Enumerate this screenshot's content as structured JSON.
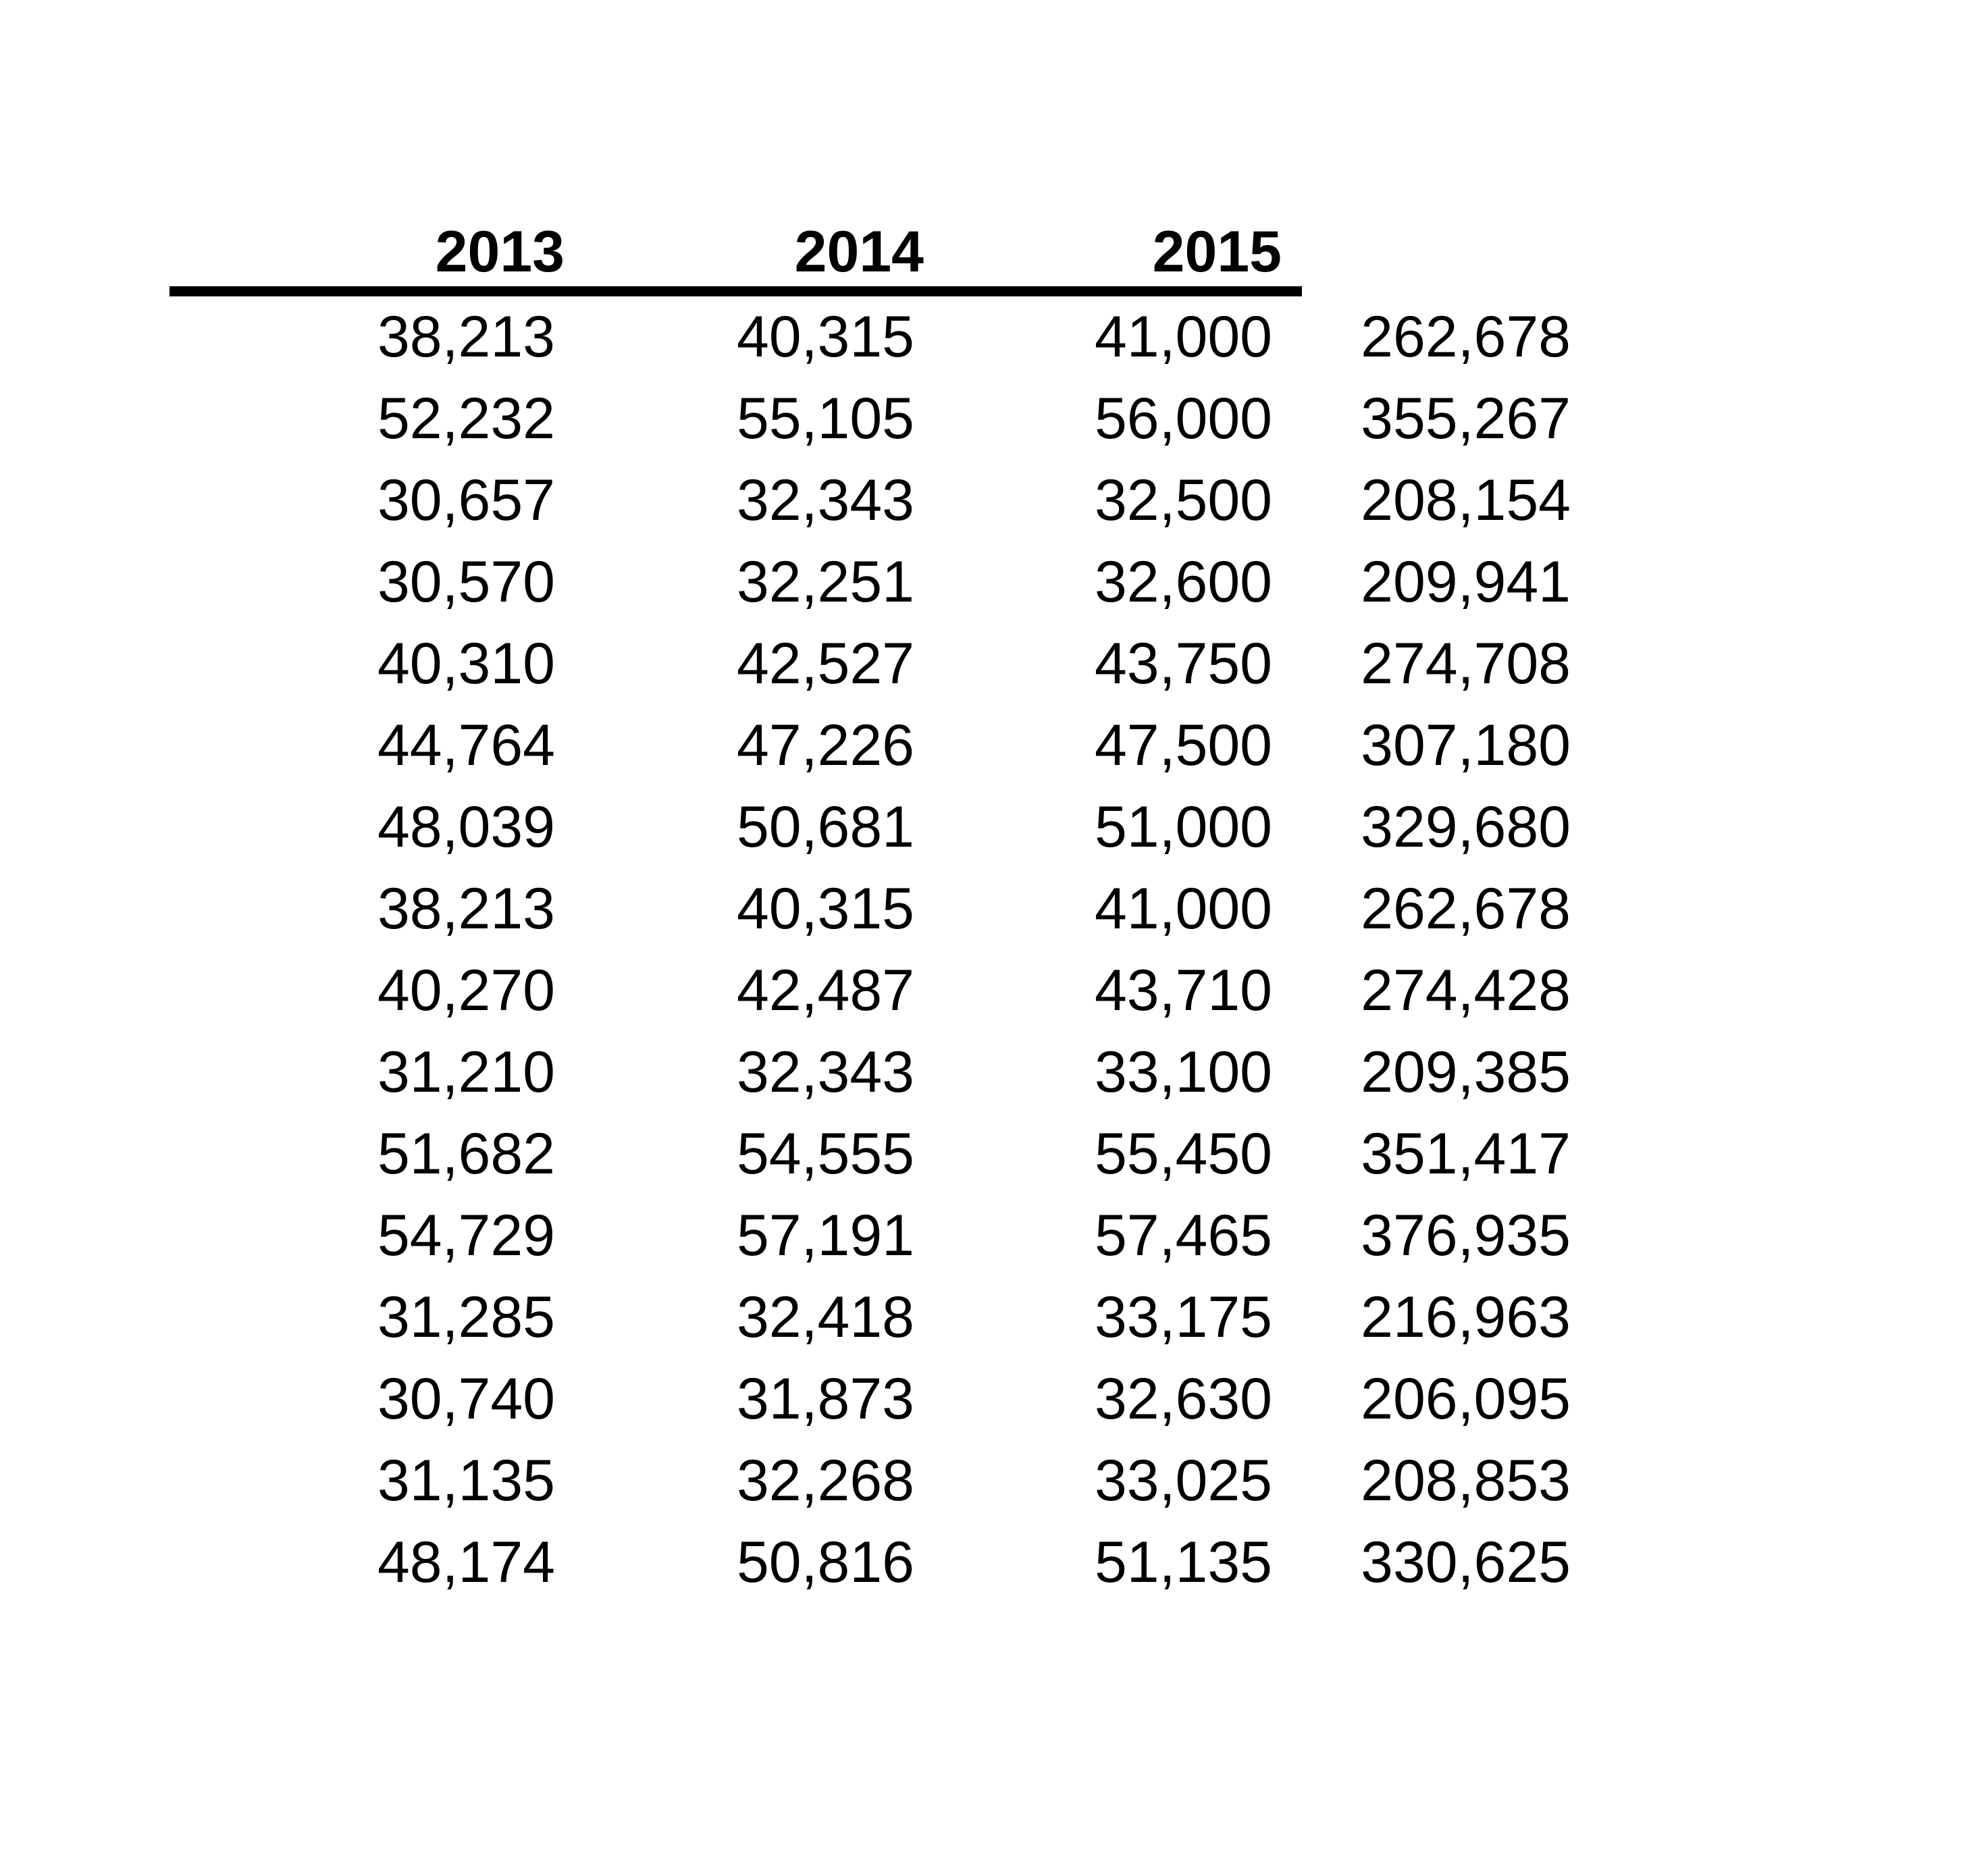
{
  "colors": {
    "background": "#ffffff",
    "text": "#000000",
    "rule": "#000000"
  },
  "table": {
    "headers": [
      "2013",
      "2014",
      "2015",
      ""
    ],
    "rows": [
      [
        "38,213",
        "40,315",
        "41,000",
        "262,678"
      ],
      [
        "52,232",
        "55,105",
        "56,000",
        "355,267"
      ],
      [
        "30,657",
        "32,343",
        "32,500",
        "208,154"
      ],
      [
        "30,570",
        "32,251",
        "32,600",
        "209,941"
      ],
      [
        "40,310",
        "42,527",
        "43,750",
        "274,708"
      ],
      [
        "44,764",
        "47,226",
        "47,500",
        "307,180"
      ],
      [
        "48,039",
        "50,681",
        "51,000",
        "329,680"
      ],
      [
        "38,213",
        "40,315",
        "41,000",
        "262,678"
      ],
      [
        "40,270",
        "42,487",
        "43,710",
        "274,428"
      ],
      [
        "31,210",
        "32,343",
        "33,100",
        "209,385"
      ],
      [
        "51,682",
        "54,555",
        "55,450",
        "351,417"
      ],
      [
        "54,729",
        "57,191",
        "57,465",
        "376,935"
      ],
      [
        "31,285",
        "32,418",
        "33,175",
        "216,963"
      ],
      [
        "30,740",
        "31,873",
        "32,630",
        "206,095"
      ],
      [
        "31,135",
        "32,268",
        "33,025",
        "208,853"
      ],
      [
        "48,174",
        "50,816",
        "51,135",
        "330,625"
      ]
    ]
  },
  "chart_data": {
    "type": "table",
    "title": "",
    "columns": [
      "2013",
      "2014",
      "2015",
      ""
    ],
    "rows": [
      [
        38213,
        40315,
        41000,
        262678
      ],
      [
        52232,
        55105,
        56000,
        355267
      ],
      [
        30657,
        32343,
        32500,
        208154
      ],
      [
        30570,
        32251,
        32600,
        209941
      ],
      [
        40310,
        42527,
        43750,
        274708
      ],
      [
        44764,
        47226,
        47500,
        307180
      ],
      [
        48039,
        50681,
        51000,
        329680
      ],
      [
        38213,
        40315,
        41000,
        262678
      ],
      [
        40270,
        42487,
        43710,
        274428
      ],
      [
        31210,
        32343,
        33100,
        209385
      ],
      [
        51682,
        54555,
        55450,
        351417
      ],
      [
        54729,
        57191,
        57465,
        376935
      ],
      [
        31285,
        32418,
        33175,
        216963
      ],
      [
        30740,
        31873,
        32630,
        206095
      ],
      [
        31135,
        32268,
        33025,
        208853
      ],
      [
        48174,
        50816,
        51135,
        330625
      ]
    ],
    "layout_hints": {
      "header_underline": "thick black rule spanning header columns 1-3 only",
      "alignment": "right",
      "grid": "off"
    }
  }
}
